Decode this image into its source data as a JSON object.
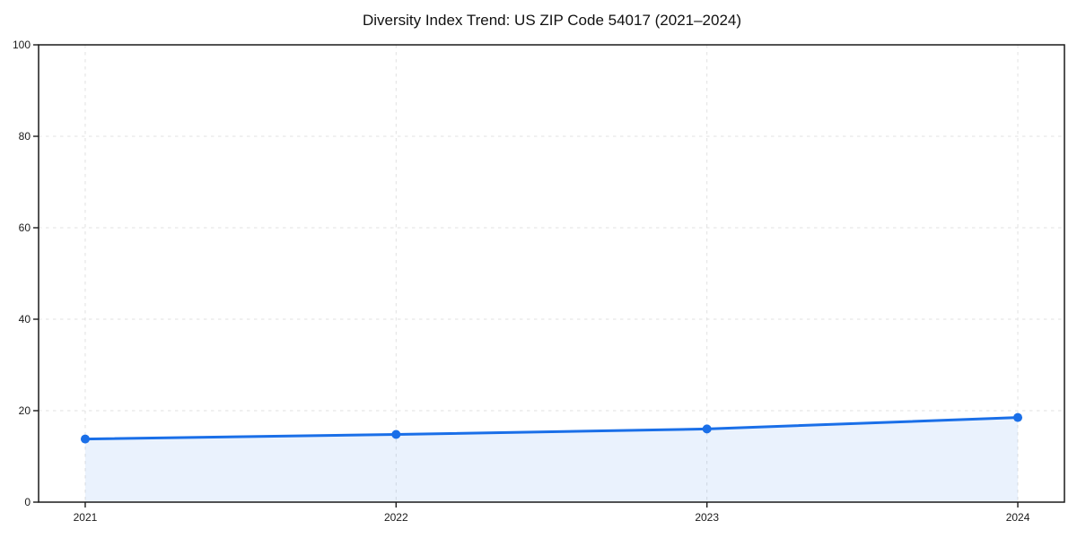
{
  "page": {
    "background_color": "#ffffff"
  },
  "chart_data": {
    "type": "line",
    "title": "Diversity Index Trend: US ZIP Code 54017 (2021–2024)",
    "x": [
      2021,
      2022,
      2023,
      2024
    ],
    "series": [
      {
        "name": "Diversity Index",
        "values": [
          13.8,
          14.8,
          16.0,
          18.5
        ]
      }
    ],
    "xlabel": "",
    "ylabel": "",
    "xlim": [
      2020.85,
      2024.15
    ],
    "ylim": [
      0,
      100
    ],
    "xticks": [
      2021,
      2022,
      2023,
      2024
    ],
    "xtick_labels": [
      "2021",
      "2022",
      "2023",
      "2024"
    ],
    "yticks": [
      0,
      20,
      40,
      60,
      80,
      100
    ],
    "ytick_labels": [
      "0",
      "20",
      "40",
      "60",
      "80",
      "100"
    ],
    "grid": true,
    "grid_style": "dashed",
    "legend_position": "none",
    "area_fill_between_first_and_last_point": true,
    "colors": {
      "line": "#1a6fe8",
      "marker": "#1a6fe8",
      "area_fill": "#1a6fe8",
      "area_fill_opacity": 0.09,
      "grid": "#e1e1e1",
      "axis": "#1a1a1a",
      "tick_label": "#1a1a1a",
      "title": "#111111"
    },
    "marker_shape": "circle",
    "line_width": 3,
    "marker_radius": 5
  }
}
